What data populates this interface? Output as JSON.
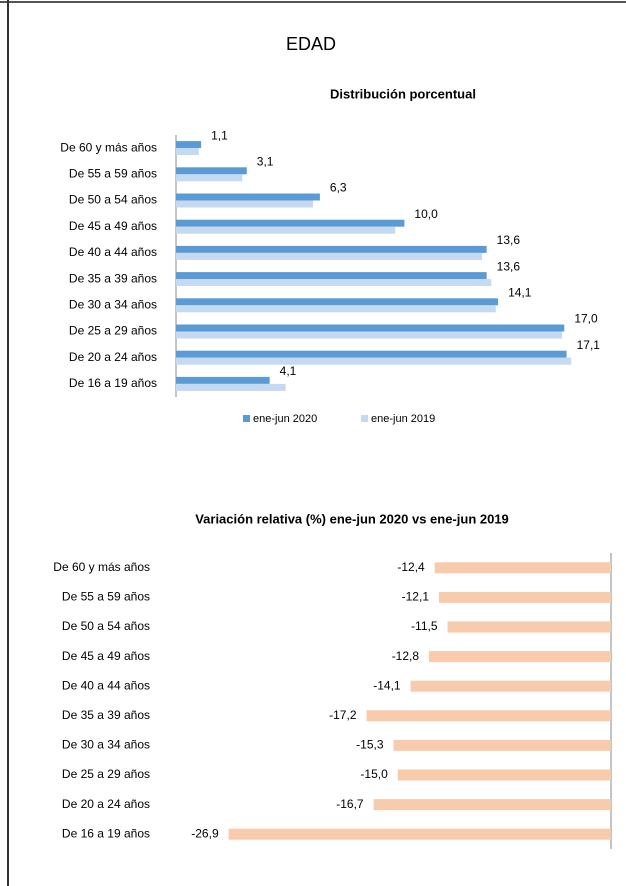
{
  "heading": "EDAD",
  "chart_data": [
    {
      "type": "bar",
      "orientation": "horizontal",
      "title": "Distribución porcentual",
      "categories": [
        "De 60 y más años",
        "De 55 a 59 años",
        "De 50 a 54 años",
        "De 45 a 49 años",
        "De 40 a 44 años",
        "De 35 a 39 años",
        "De 30 a 34 años",
        "De 25 a 29 años",
        "De 20 a 24 años",
        "De 16 a 19 años"
      ],
      "series": [
        {
          "name": "ene-jun 2020",
          "color": "#5b9bd5",
          "values": [
            1.1,
            3.1,
            6.3,
            10.0,
            13.6,
            13.6,
            14.1,
            17.0,
            17.1,
            4.1
          ],
          "value_labels": [
            "1,1",
            "3,1",
            "6,3",
            "10,0",
            "13,6",
            "13,6",
            "14,1",
            "17,0",
            "17,1",
            "4,1"
          ]
        },
        {
          "name": "ene-jun 2019",
          "color": "#c5d9f1",
          "values": [
            1.0,
            2.9,
            6.0,
            9.6,
            13.4,
            13.8,
            14.0,
            16.9,
            17.3,
            4.8
          ]
        }
      ],
      "xlim": [
        0,
        19
      ],
      "legend": "bottom"
    },
    {
      "type": "bar",
      "orientation": "horizontal",
      "title": "Variación relativa (%) ene-jun 2020 vs ene-jun 2019",
      "categories": [
        "De 60 y más años",
        "De 55 a 59 años",
        "De 50 a 54 años",
        "De 45 a 49 años",
        "De 40 a 44 años",
        "De 35 a 39 años",
        "De 30 a 34 años",
        "De 25 a 29 años",
        "De 20 a 24 años",
        "De 16 a 19 años"
      ],
      "values": [
        -12.4,
        -12.1,
        -11.5,
        -12.8,
        -14.1,
        -17.2,
        -15.3,
        -15.0,
        -16.7,
        -26.9
      ],
      "value_labels": [
        "-12,4",
        "-12,1",
        "-11,5",
        "-12,8",
        "-14,1",
        "-17,2",
        "-15,3",
        "-15,0",
        "-16,7",
        "-26,9"
      ],
      "color": "#f8cbad",
      "xlim": [
        -28,
        0
      ]
    }
  ]
}
